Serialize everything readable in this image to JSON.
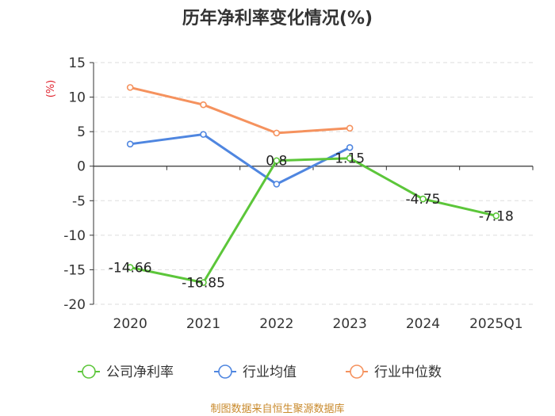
{
  "chart_data": {
    "type": "line",
    "title": "历年净利率变化情况(%)",
    "ylabel": "(%)",
    "xlabel": "",
    "categories": [
      "2020",
      "2021",
      "2022",
      "2023",
      "2024",
      "2025Q1"
    ],
    "ylim": [
      -20,
      15
    ],
    "yticks": [
      15,
      10,
      5,
      0,
      -5,
      -10,
      -15,
      -20
    ],
    "grid": true,
    "legend_position": "bottom",
    "series": [
      {
        "name": "公司净利率",
        "color": "#5cc63a",
        "values": [
          -14.66,
          -16.85,
          0.8,
          1.15,
          -4.75,
          -7.18
        ],
        "labels": [
          "-14.66",
          "-16.85",
          "0.8",
          "1.15",
          "-4.75",
          "-7.18"
        ]
      },
      {
        "name": "行业均值",
        "color": "#4f86e0",
        "values": [
          3.2,
          4.6,
          -2.6,
          2.7,
          null,
          null
        ]
      },
      {
        "name": "行业中位数",
        "color": "#f5925e",
        "values": [
          11.4,
          8.9,
          4.8,
          5.5,
          null,
          null
        ]
      }
    ]
  },
  "source": "制图数据来自恒生聚源数据库"
}
